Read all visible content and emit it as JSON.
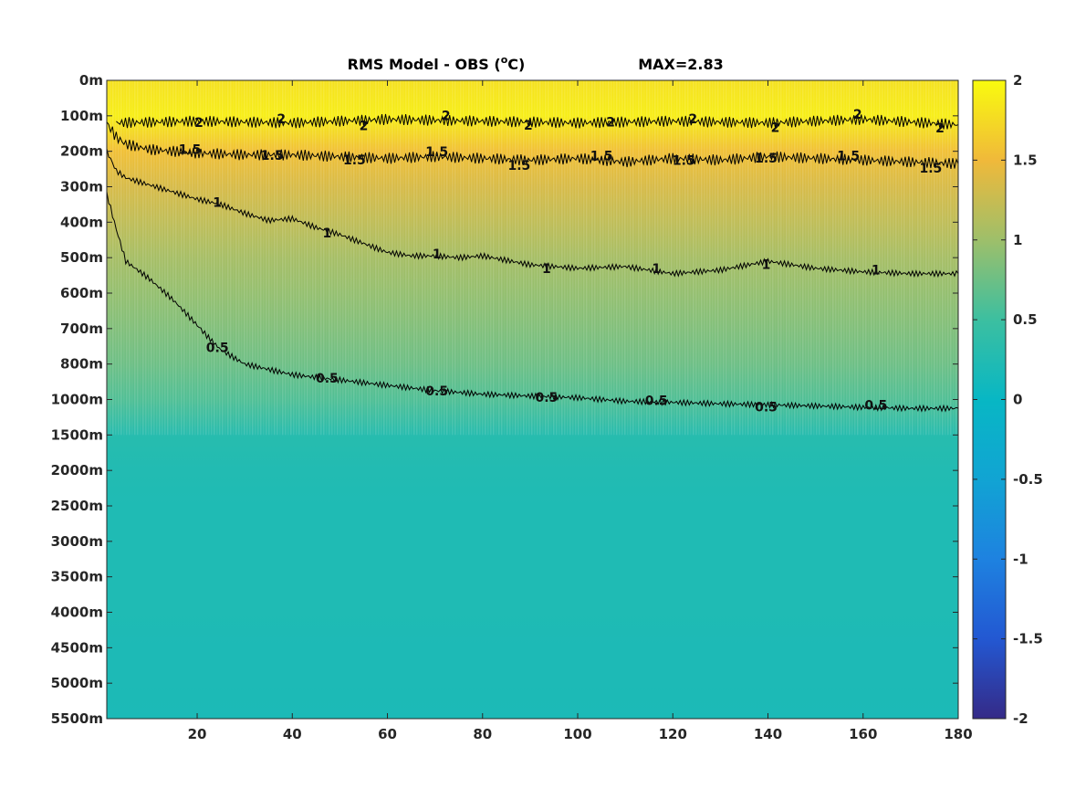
{
  "chart_data": {
    "type": "heatmap",
    "title": "RMS Model - OBS (°C)",
    "title_main": "RMS Model - OBS (",
    "title_superscript": "o",
    "title_unit": "C)",
    "annotation": "MAX=2.83",
    "xlim": [
      1,
      180
    ],
    "x_ticks": [
      20,
      40,
      60,
      80,
      100,
      120,
      140,
      160,
      180
    ],
    "y_tick_labels": [
      "0m",
      "100m",
      "200m",
      "300m",
      "400m",
      "500m",
      "600m",
      "700m",
      "800m",
      "1000m",
      "1500m",
      "2000m",
      "2500m",
      "3000m",
      "3500m",
      "4000m",
      "4500m",
      "5000m",
      "5500m"
    ],
    "colorbar": {
      "colormap": "parula",
      "clim": [
        -2,
        2
      ],
      "ticks": [
        "2",
        "1.5",
        "1",
        "0.5",
        "0",
        "-0.5",
        "-1",
        "-1.5",
        "-2"
      ],
      "tick_values": [
        2,
        1.5,
        1,
        0.5,
        0,
        -0.5,
        -1,
        -1.5,
        -2
      ]
    },
    "contour_levels": [
      0.5,
      1,
      1.5,
      2
    ],
    "contour_label_texts": [
      "0.5",
      "1",
      "1.5",
      "2"
    ],
    "depth_profile": {
      "depth_index": [
        0,
        1,
        2,
        3,
        4,
        5,
        6,
        7,
        8,
        9,
        10,
        11,
        12,
        13,
        14,
        15,
        16,
        17,
        18
      ],
      "approx_rms": [
        1.8,
        1.9,
        1.55,
        1.35,
        1.2,
        1.05,
        0.95,
        0.85,
        0.75,
        0.6,
        0.3,
        0.25,
        0.22,
        0.22,
        0.22,
        0.22,
        0.2,
        0.2,
        0.18
      ]
    },
    "contours": [
      {
        "level": 0.5,
        "x": [
          1,
          3,
          5,
          10,
          15,
          20,
          22,
          25,
          30,
          40,
          50,
          60,
          70,
          80,
          90,
          100,
          110,
          120,
          130,
          140,
          150,
          160,
          170,
          180
        ],
        "depth_index": [
          3.2,
          4.2,
          5.1,
          5.6,
          6.2,
          6.9,
          7.2,
          7.6,
          8.0,
          8.3,
          8.45,
          8.6,
          8.75,
          8.85,
          8.9,
          8.95,
          9.05,
          9.08,
          9.12,
          9.15,
          9.18,
          9.22,
          9.25,
          9.25
        ]
      },
      {
        "level": 1,
        "x": [
          1,
          3,
          5,
          10,
          15,
          20,
          25,
          30,
          35,
          40,
          45,
          50,
          55,
          60,
          65,
          70,
          75,
          80,
          90,
          100,
          110,
          120,
          130,
          140,
          150,
          160,
          170,
          180
        ],
        "depth_index": [
          2.0,
          2.55,
          2.75,
          2.95,
          3.15,
          3.35,
          3.5,
          3.75,
          3.95,
          3.9,
          4.15,
          4.35,
          4.6,
          4.85,
          4.95,
          4.95,
          5.0,
          4.95,
          5.2,
          5.3,
          5.25,
          5.45,
          5.35,
          5.1,
          5.3,
          5.4,
          5.45,
          5.45
        ]
      },
      {
        "level": 1.5,
        "x": [
          1,
          3,
          5,
          10,
          20,
          30,
          40,
          50,
          60,
          70,
          80,
          90,
          100,
          110,
          120,
          130,
          140,
          150,
          160,
          170,
          180
        ],
        "depth_index": [
          1.2,
          1.6,
          1.8,
          1.95,
          2.05,
          2.1,
          2.1,
          2.15,
          2.2,
          2.15,
          2.2,
          2.25,
          2.2,
          2.3,
          2.2,
          2.25,
          2.15,
          2.2,
          2.25,
          2.3,
          2.35
        ]
      },
      {
        "level": 2,
        "x": [
          3,
          20,
          40,
          60,
          80,
          100,
          120,
          140,
          160,
          180
        ],
        "depth_index": [
          1.2,
          1.15,
          1.2,
          1.1,
          1.15,
          1.2,
          1.15,
          1.2,
          1.1,
          1.25
        ]
      }
    ]
  }
}
